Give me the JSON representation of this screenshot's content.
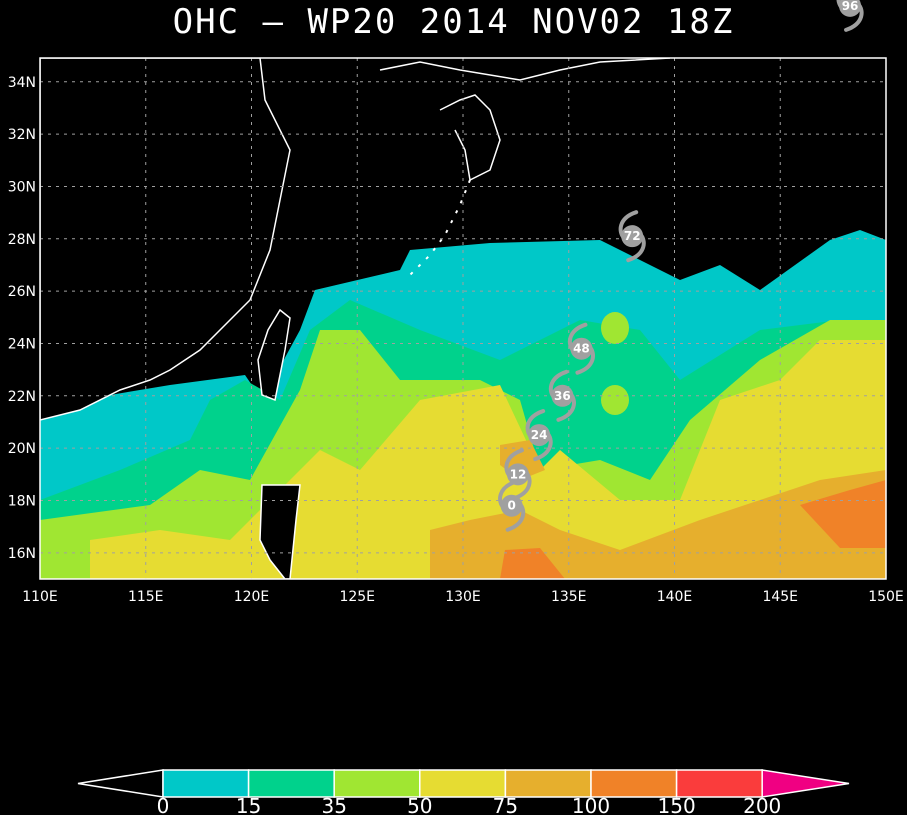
{
  "title": "OHC — WP20 2014 NOV02 18Z",
  "map": {
    "lon_range": [
      110,
      150
    ],
    "lat_range": [
      15,
      35.9
    ],
    "grid": true,
    "lon_ticks": [
      "110E",
      "115E",
      "120E",
      "125E",
      "130E",
      "135E",
      "140E",
      "145E",
      "150E"
    ],
    "lat_ticks": [
      "16N",
      "18N",
      "20N",
      "22N",
      "24N",
      "26N",
      "28N",
      "30N",
      "32N",
      "34N"
    ],
    "colors": {
      "cyan": "#00C8C8",
      "green": "#00D28C",
      "lime": "#A0E632",
      "yellow": "#E6DC32",
      "gold": "#E6AF2D",
      "orange": "#F08228",
      "red": "#FA3C3C",
      "magenta": "#F00082",
      "storm": "#A0A0A0",
      "coast": "#FFFFFF",
      "grid": "#A0A0A0"
    }
  },
  "storm_track": [
    {
      "label": "0",
      "lon": 132.3,
      "lat": 17.8
    },
    {
      "label": "12",
      "lon": 132.6,
      "lat": 19.0
    },
    {
      "label": "24",
      "lon": 133.6,
      "lat": 20.5
    },
    {
      "label": "36",
      "lon": 134.7,
      "lat": 22.0
    },
    {
      "label": "48",
      "lon": 135.6,
      "lat": 23.8
    },
    {
      "label": "72",
      "lon": 138.0,
      "lat": 28.1
    },
    {
      "label": "96",
      "lon": 148.3,
      "lat": 36.9
    }
  ],
  "colorbar": {
    "labels": [
      "0",
      "15",
      "35",
      "50",
      "75",
      "100",
      "150",
      "200"
    ],
    "colors": [
      "#00C8C8",
      "#00D28C",
      "#A0E632",
      "#E6DC32",
      "#E6AF2D",
      "#F08228",
      "#FA3C3C"
    ],
    "low_end_color": "#000000",
    "high_end_color": "#F00082"
  }
}
